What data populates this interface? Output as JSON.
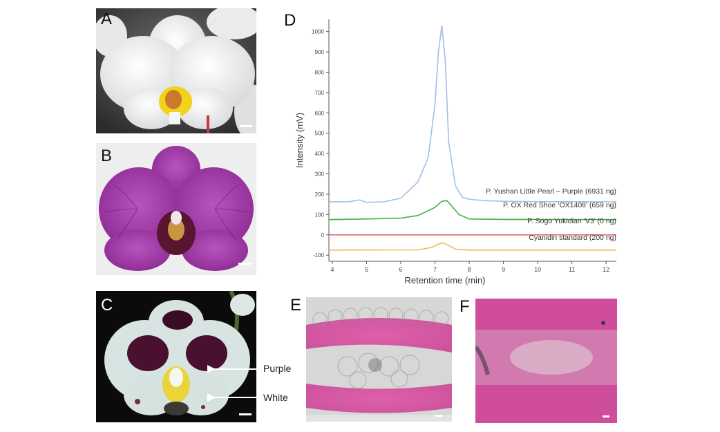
{
  "panels": {
    "a": {
      "label": "A"
    },
    "b": {
      "label": "B"
    },
    "c": {
      "label": "C",
      "annotations": {
        "purple": "Purple",
        "white": "White"
      }
    },
    "d": {
      "label": "D"
    },
    "e": {
      "label": "E"
    },
    "f": {
      "label": "F"
    }
  },
  "colors": {
    "white_orchid": "#f4f4f4",
    "purple_orchid": "#a235a8",
    "dark_purple": "#4a1030",
    "stain_pink": "#d0409a",
    "series_purple": "#9ec0e6",
    "series_ox": "#3fb33f",
    "series_sogo": "#e06a6a",
    "series_cyanidin": "#f2b85a"
  },
  "chart_data": {
    "type": "line",
    "xlabel": "Retention time (min)",
    "ylabel": "Intensity (mV)",
    "xlim": [
      3.9,
      12.3
    ],
    "ylim": [
      -130,
      1060
    ],
    "x_ticks": [
      "4",
      "5",
      "6",
      "7",
      "8",
      "9",
      "10",
      "11",
      "12"
    ],
    "y_ticks": [
      "-100",
      "0",
      "100",
      "200",
      "300",
      "400",
      "500",
      "600",
      "700",
      "800",
      "900",
      "1000"
    ],
    "series": [
      {
        "name": "P. Yushan Little Pearl – Purple (6931 ng)",
        "color": "#9ec0e6",
        "x": [
          3.9,
          4.5,
          4.8,
          5.0,
          5.5,
          6.0,
          6.5,
          6.8,
          7.0,
          7.1,
          7.2,
          7.3,
          7.4,
          7.6,
          7.8,
          8.0,
          8.5,
          9.0,
          10.0,
          11.0,
          12.3
        ],
        "y": [
          162,
          163,
          172,
          160,
          162,
          180,
          260,
          380,
          640,
          900,
          1030,
          860,
          460,
          240,
          185,
          175,
          168,
          165,
          163,
          163,
          162
        ]
      },
      {
        "name": "P. OX Red Shoe ‘OX1408’ (659 ng)",
        "color": "#3fb33f",
        "x": [
          3.9,
          5.0,
          6.0,
          6.5,
          7.0,
          7.2,
          7.35,
          7.5,
          7.7,
          8.0,
          9.0,
          12.3
        ],
        "y": [
          75,
          78,
          82,
          95,
          135,
          165,
          168,
          140,
          100,
          78,
          76,
          75
        ]
      },
      {
        "name": "P. Sogo Yukidian ‘V3’ (0 ng)",
        "color": "#e06a6a",
        "x": [
          3.9,
          12.3
        ],
        "y": [
          0,
          0
        ]
      },
      {
        "name": "Cyanidin standard (200 ng)",
        "color": "#f2b85a",
        "x": [
          3.9,
          6.5,
          6.9,
          7.1,
          7.25,
          7.4,
          7.6,
          8.0,
          12.3
        ],
        "y": [
          -75,
          -74,
          -62,
          -45,
          -40,
          -52,
          -70,
          -75,
          -75
        ]
      }
    ],
    "grid": false,
    "legend": "inline-right"
  }
}
